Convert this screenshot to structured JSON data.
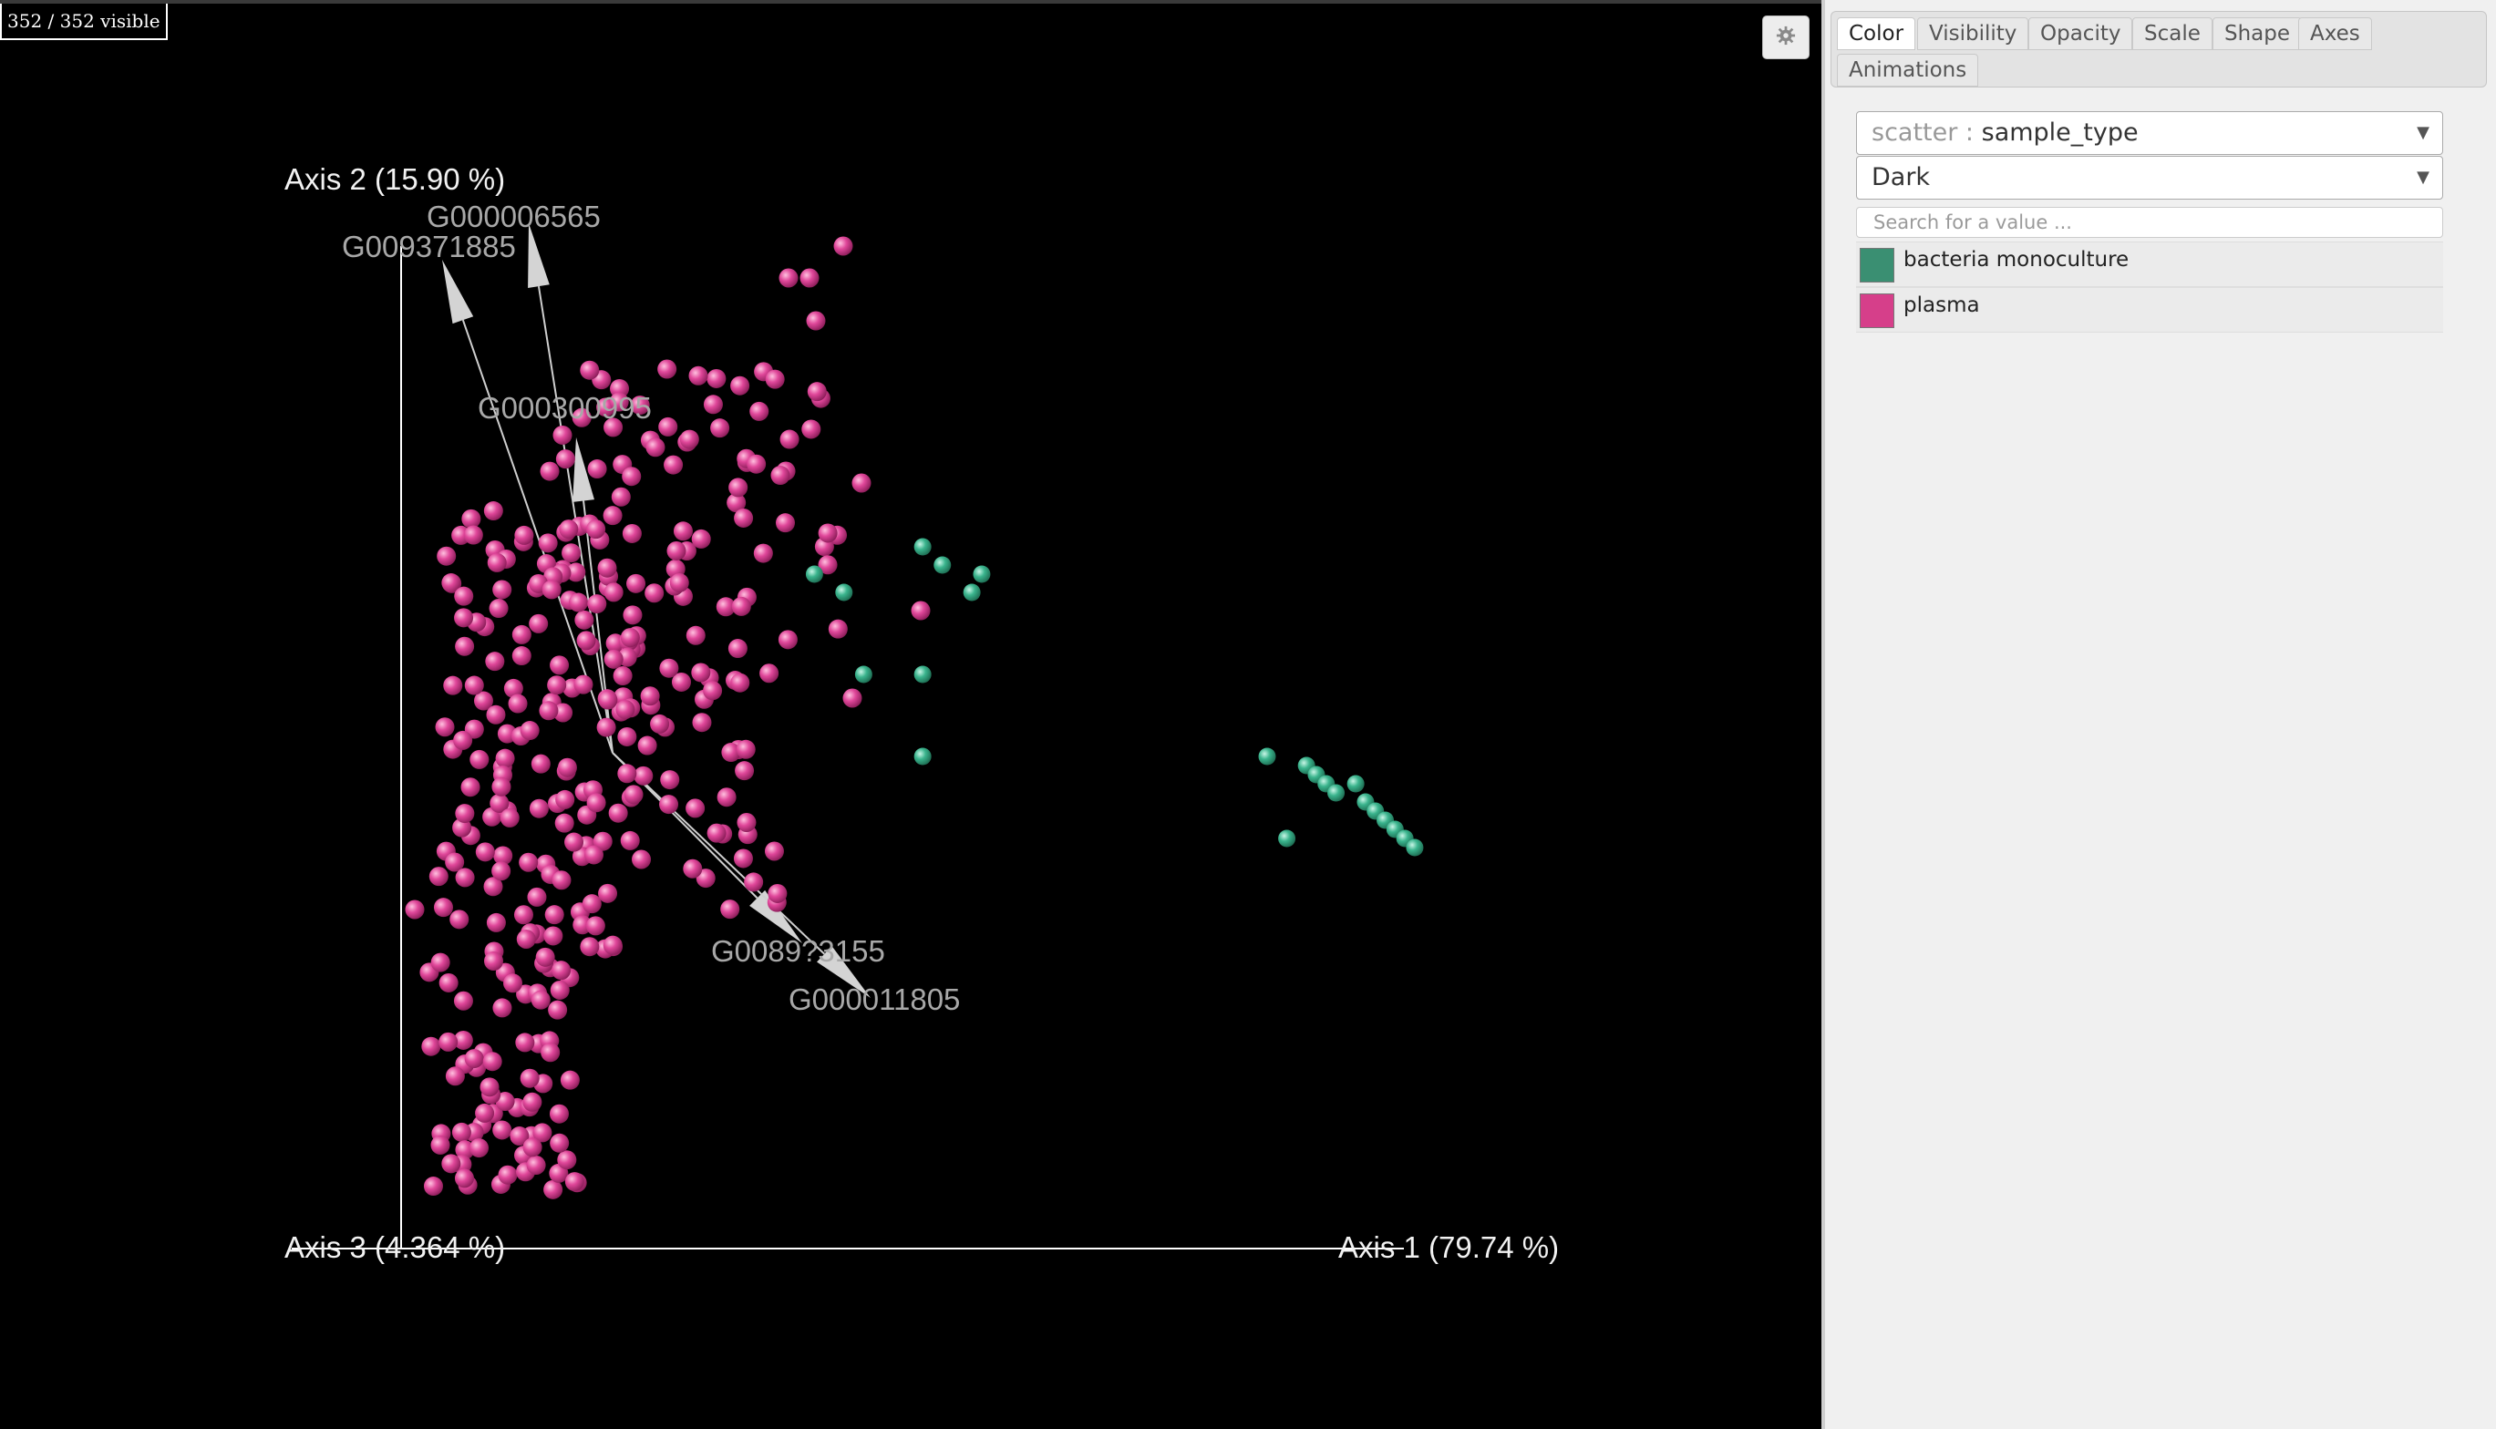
{
  "plot": {
    "visible_counter": "352 / 352 visible",
    "axis_labels": {
      "axis1": "Axis 1 (79.74 %)",
      "axis2": "Axis 2 (15.90 %)",
      "axis3": "Axis 3 (4.364 %)"
    },
    "background_color": "#000000",
    "axis_line_color": "#ffffff",
    "arrow_color": "#c8c8c8",
    "biplot_features": [
      "G009371885",
      "G000006565",
      "G000300995",
      "G0089?3155",
      "G000011805"
    ],
    "settings_icon": "gear-icon"
  },
  "side_panel": {
    "tabs": [
      "Color",
      "Visibility",
      "Opacity",
      "Scale",
      "Shape",
      "Axes",
      "Animations"
    ],
    "active_tab": "Color",
    "color_by": {
      "prefix": "scatter :",
      "value": "sample_type"
    },
    "colormap": "Dark",
    "search_placeholder": "Search for a value ...",
    "legend": [
      {
        "label": "bacteria monoculture",
        "color": "#3a8f72"
      },
      {
        "label": "plasma",
        "color": "#d63f8a"
      }
    ]
  },
  "chart_data": {
    "type": "scatter",
    "title": "",
    "series": [
      {
        "name": "plasma",
        "color": "#e0479a",
        "count": 330
      },
      {
        "name": "bacteria monoculture",
        "color": "#3ab48d",
        "points": [
          [
            0.47,
            0.68
          ],
          [
            0.5,
            0.66
          ],
          [
            0.58,
            0.71
          ],
          [
            0.6,
            0.69
          ],
          [
            0.63,
            0.66
          ],
          [
            0.64,
            0.68
          ],
          [
            0.52,
            0.57
          ],
          [
            0.58,
            0.57
          ],
          [
            0.58,
            0.48
          ],
          [
            0.93,
            0.48
          ],
          [
            0.97,
            0.47
          ],
          [
            0.98,
            0.46
          ],
          [
            0.99,
            0.45
          ],
          [
            1.0,
            0.44
          ],
          [
            1.02,
            0.45
          ],
          [
            1.03,
            0.43
          ],
          [
            1.04,
            0.42
          ],
          [
            1.05,
            0.41
          ],
          [
            1.06,
            0.4
          ],
          [
            1.07,
            0.39
          ],
          [
            1.08,
            0.38
          ],
          [
            0.95,
            0.39
          ]
        ]
      }
    ],
    "xlabel": "Axis 1 (79.74 %)",
    "ylabel": "Axis 2 (15.90 %)",
    "zlabel": "Axis 3 (4.364 %)",
    "legend": "side panel"
  }
}
